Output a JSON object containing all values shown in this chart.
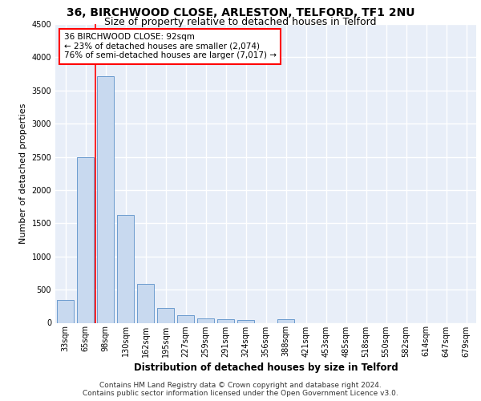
{
  "title1": "36, BIRCHWOOD CLOSE, ARLESTON, TELFORD, TF1 2NU",
  "title2": "Size of property relative to detached houses in Telford",
  "xlabel": "Distribution of detached houses by size in Telford",
  "ylabel": "Number of detached properties",
  "footnote1": "Contains HM Land Registry data © Crown copyright and database right 2024.",
  "footnote2": "Contains public sector information licensed under the Open Government Licence v3.0.",
  "bin_labels": [
    "33sqm",
    "65sqm",
    "98sqm",
    "130sqm",
    "162sqm",
    "195sqm",
    "227sqm",
    "259sqm",
    "291sqm",
    "324sqm",
    "356sqm",
    "388sqm",
    "421sqm",
    "453sqm",
    "485sqm",
    "518sqm",
    "550sqm",
    "582sqm",
    "614sqm",
    "647sqm",
    "679sqm"
  ],
  "bar_values": [
    350,
    2500,
    3720,
    1630,
    590,
    225,
    110,
    70,
    55,
    40,
    0,
    60,
    0,
    0,
    0,
    0,
    0,
    0,
    0,
    0,
    0
  ],
  "bar_color": "#c8d9ef",
  "bar_edge_color": "#5a90c8",
  "vline_x": 1.5,
  "vline_color": "red",
  "annotation_text": "36 BIRCHWOOD CLOSE: 92sqm\n← 23% of detached houses are smaller (2,074)\n76% of semi-detached houses are larger (7,017) →",
  "annotation_box_color": "white",
  "annotation_box_edgecolor": "red",
  "ylim": [
    0,
    4500
  ],
  "background_color": "#e8eef8",
  "grid_color": "white",
  "title1_fontsize": 10,
  "title2_fontsize": 9,
  "axis_label_fontsize": 8,
  "tick_fontsize": 7,
  "annotation_fontsize": 7.5,
  "footnote_fontsize": 6.5,
  "yticks": [
    0,
    500,
    1000,
    1500,
    2000,
    2500,
    3000,
    3500,
    4000,
    4500
  ]
}
